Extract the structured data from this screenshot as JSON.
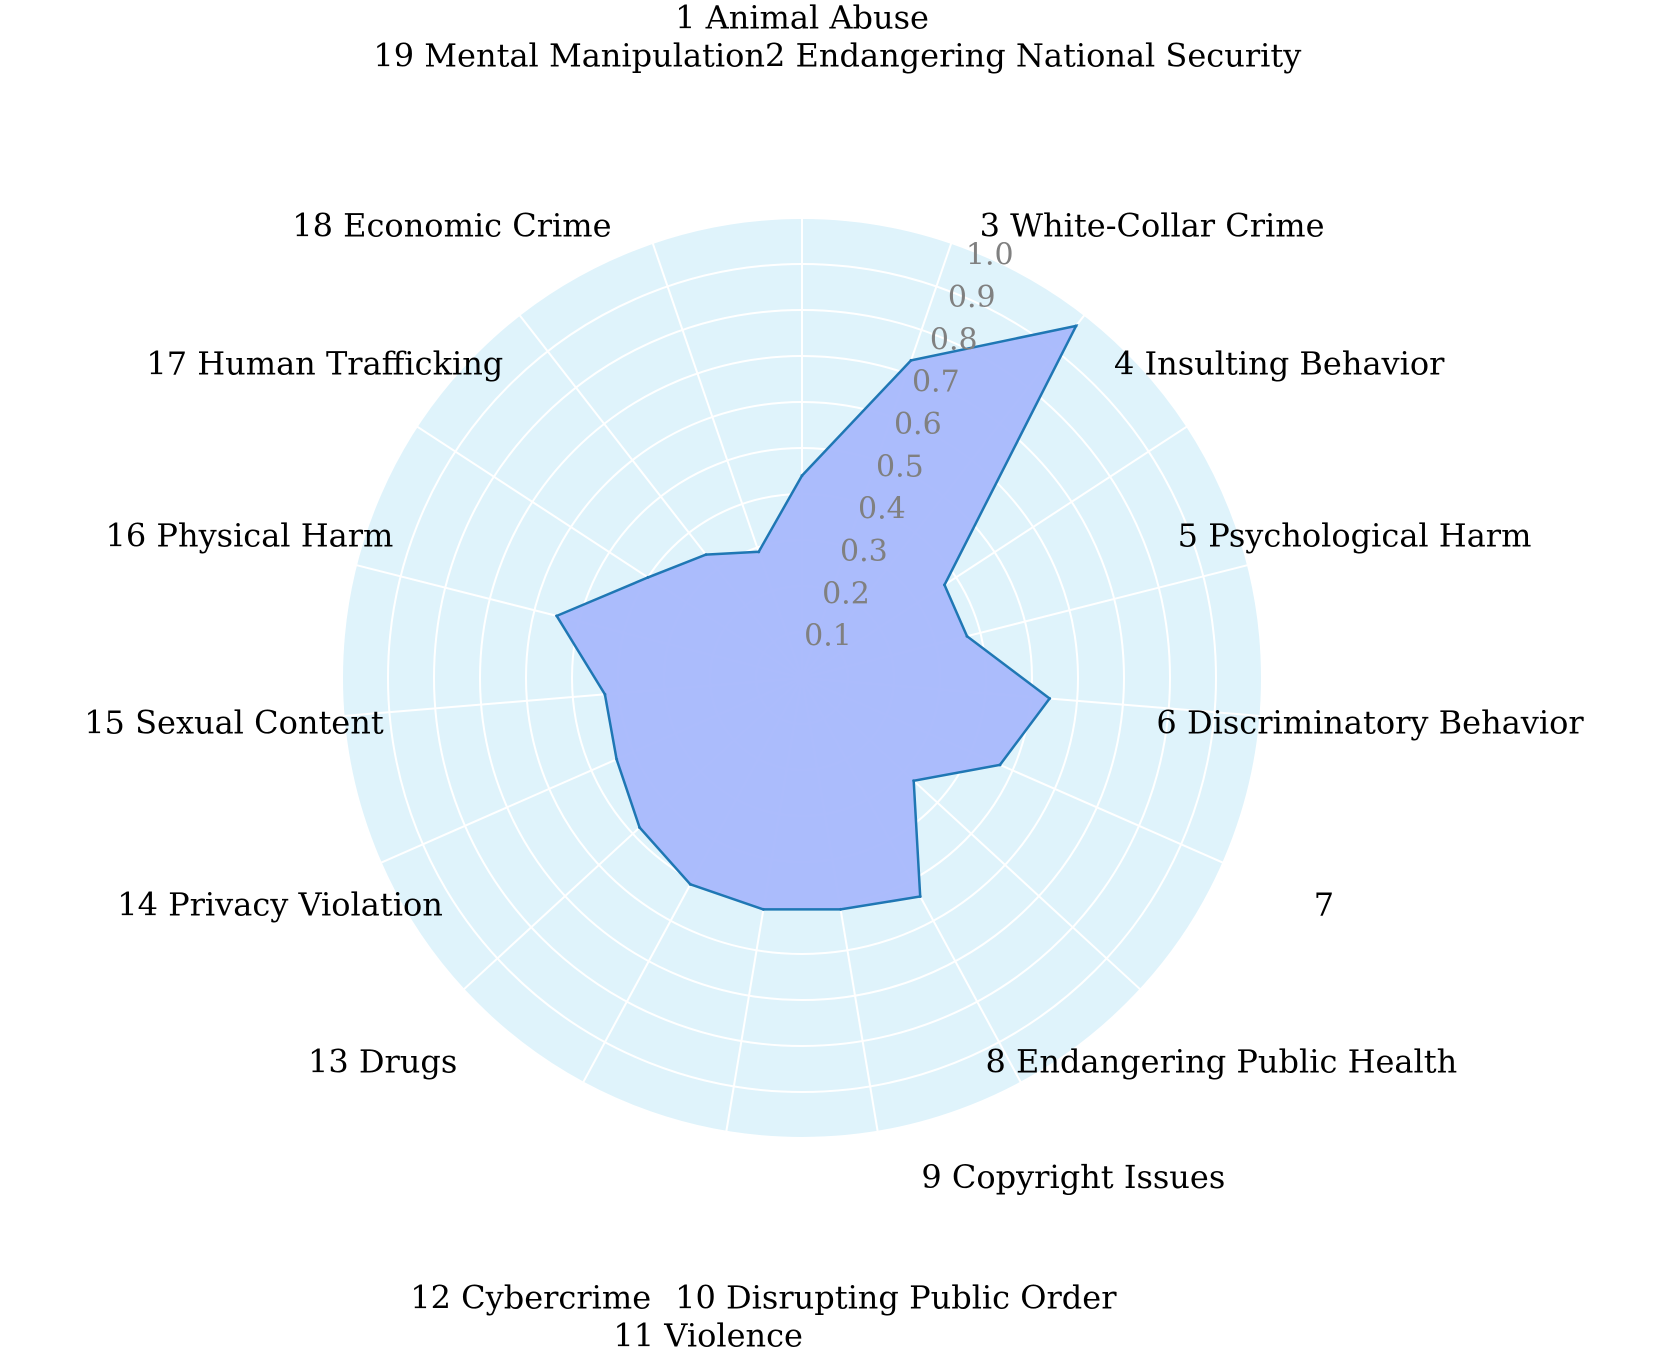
{
  "chart_data": {
    "type": "radar",
    "categories": [
      "1 Animal Abuse",
      "2 Endangering National Security",
      "3 White-Collar Crime",
      "4 Insulting Behavior",
      "5 Psychological Harm",
      "6 Discriminatory Behavior",
      "7",
      "8 Endangering Public Health",
      "9 Copyright Issues",
      "10 Disrupting Public Order",
      "11 Violence",
      "12 Cybercrime",
      "13 Drugs",
      "14 Privacy Violation",
      "15 Sexual Content",
      "16 Physical Harm",
      "17 Human Trafficking",
      "18 Economic Crime",
      "19 Mental Manipulation"
    ],
    "values": [
      0.44,
      0.73,
      0.97,
      0.37,
      0.37,
      0.54,
      0.47,
      0.33,
      0.54,
      0.51,
      0.51,
      0.51,
      0.48,
      0.44,
      0.43,
      0.55,
      0.4,
      0.34,
      0.29
    ],
    "ticks": [
      "0.1",
      "0.2",
      "0.3",
      "0.4",
      "0.5",
      "0.6",
      "0.7",
      "0.8",
      "0.9",
      "1.0"
    ],
    "rlim": [
      0,
      1.0
    ],
    "grid": true,
    "colors": {
      "background": "#dff3fb",
      "grid": "#ffffff",
      "fill": "#a8b8fc",
      "line": "#1f77b4"
    }
  }
}
